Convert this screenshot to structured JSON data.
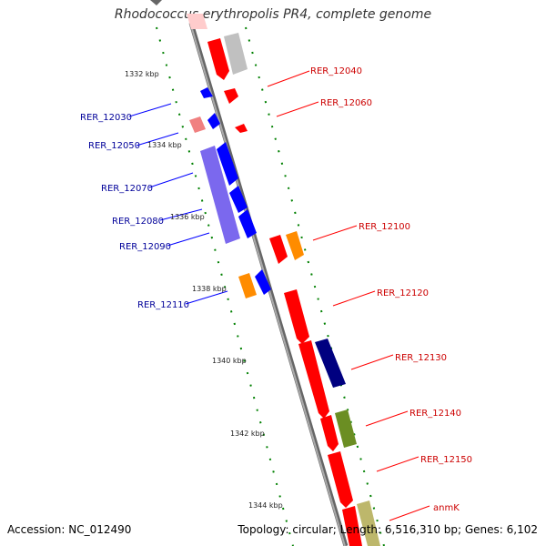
{
  "title": "Rhodococcus erythropolis PR4, complete genome",
  "accession": "Accession: NC_012490",
  "summary": "Topology: circular; Length: 6,516,310 bp; Genes: 6,102",
  "colors": {
    "forward_gene": "#ff0000",
    "reverse_gene": "#0000ff",
    "forward_label": "#cc0000",
    "reverse_label": "#000099",
    "axis": "#808080",
    "tick_dots": "#008000"
  },
  "scale": {
    "kbp_labels": [
      "1332 kbp",
      "1334 kbp",
      "1336 kbp",
      "1338 kbp",
      "1340 kbp",
      "1342 kbp",
      "1344 kbp"
    ]
  },
  "forward_labels": [
    "RER_12040",
    "RER_12060",
    "RER_12100",
    "RER_12120",
    "RER_12130",
    "RER_12140",
    "RER_12150",
    "anmK"
  ],
  "reverse_labels": [
    "RER_12030",
    "RER_12050",
    "RER_12070",
    "RER_12080",
    "RER_12090",
    "RER_12110"
  ]
}
